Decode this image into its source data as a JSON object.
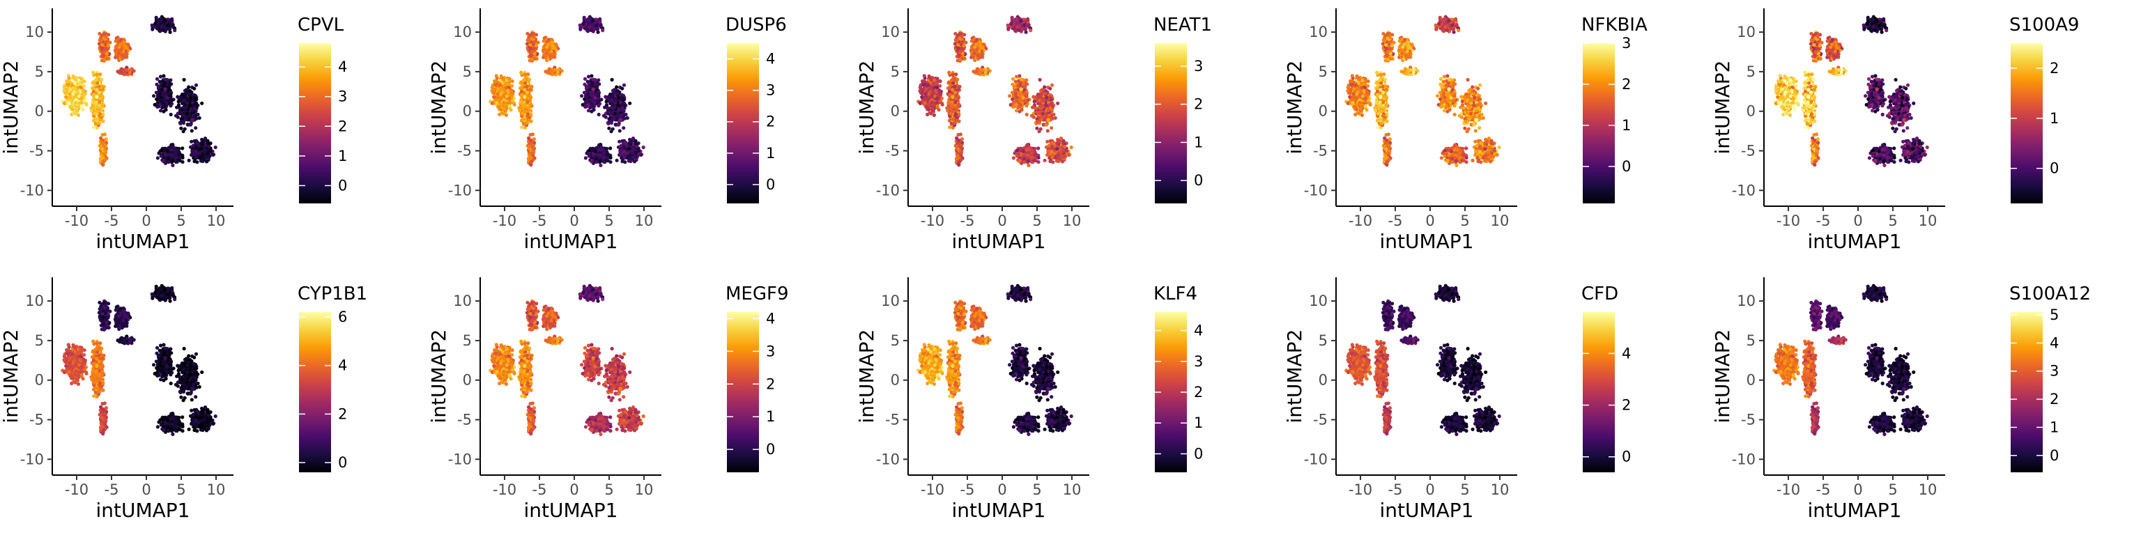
{
  "figure": {
    "colormap": "inferno",
    "colormap_stops": [
      "#000004",
      "#1b0c41",
      "#4a0c6b",
      "#781c6d",
      "#a52c60",
      "#cf4446",
      "#ed6925",
      "#fb9b06",
      "#f7d13d",
      "#fcffa4"
    ],
    "axis_color": "#000000",
    "background": "#ffffff"
  },
  "chart_data": [
    {
      "type": "scatter",
      "gene": "CPVL",
      "xlabel": "intUMAP1",
      "ylabel": "intUMAP2",
      "xlim": [
        -13.5,
        12.5
      ],
      "ylim": [
        -12,
        13
      ],
      "xticks": [
        -10,
        -5,
        0,
        5,
        10
      ],
      "yticks": [
        -10,
        -5,
        0,
        5,
        10
      ],
      "color_range": [
        -0.6,
        4.8
      ],
      "color_ticks": [
        0,
        1,
        2,
        3,
        4
      ],
      "profile": [
        4.2,
        3.9,
        3.4,
        3.0,
        3.0,
        2.5,
        0.0,
        0.0,
        0.0,
        0.0,
        0.0
      ]
    },
    {
      "type": "scatter",
      "gene": "DUSP6",
      "xlabel": "intUMAP1",
      "ylabel": "intUMAP2",
      "xlim": [
        -13.5,
        12.5
      ],
      "ylim": [
        -12,
        13
      ],
      "xticks": [
        -10,
        -5,
        0,
        5,
        10
      ],
      "yticks": [
        -10,
        -5,
        0,
        5,
        10
      ],
      "color_range": [
        -0.6,
        4.5
      ],
      "color_ticks": [
        0,
        1,
        2,
        3,
        4
      ],
      "profile": [
        3.3,
        3.3,
        2.8,
        2.8,
        3.0,
        3.0,
        0.5,
        0.4,
        0.3,
        0.4,
        0.2
      ]
    },
    {
      "type": "scatter",
      "gene": "NEAT1",
      "xlabel": "intUMAP1",
      "ylabel": "intUMAP2",
      "xlim": [
        -13.5,
        12.5
      ],
      "ylim": [
        -12,
        13
      ],
      "xticks": [
        -10,
        -5,
        0,
        5,
        10
      ],
      "yticks": [
        -10,
        -5,
        0,
        5,
        10
      ],
      "color_range": [
        -0.6,
        3.6
      ],
      "color_ticks": [
        0,
        1,
        2,
        3
      ],
      "profile": [
        1.6,
        2.0,
        1.9,
        2.0,
        2.2,
        2.3,
        1.2,
        2.2,
        1.9,
        1.9,
        1.6
      ]
    },
    {
      "type": "scatter",
      "gene": "NFKBIA",
      "xlabel": "intUMAP1",
      "ylabel": "intUMAP2",
      "xlim": [
        -13.5,
        12.5
      ],
      "ylim": [
        -12,
        13
      ],
      "xticks": [
        -10,
        -5,
        0,
        5,
        10
      ],
      "yticks": [
        -10,
        -5,
        0,
        5,
        10
      ],
      "color_range": [
        -0.9,
        3.0
      ],
      "color_ticks": [
        0,
        1,
        2,
        3
      ],
      "profile": [
        1.9,
        2.3,
        1.8,
        1.9,
        2.0,
        2.3,
        1.2,
        2.0,
        2.1,
        1.9,
        1.6
      ]
    },
    {
      "type": "scatter",
      "gene": "S100A9",
      "xlabel": "intUMAP1",
      "ylabel": "intUMAP2",
      "xlim": [
        -13.5,
        12.5
      ],
      "ylim": [
        -12,
        13
      ],
      "xticks": [
        -10,
        -5,
        0,
        5,
        10
      ],
      "yticks": [
        -10,
        -5,
        0,
        5,
        10
      ],
      "color_range": [
        -0.7,
        2.5
      ],
      "color_ticks": [
        0,
        1,
        2
      ],
      "profile": [
        2.2,
        2.1,
        1.6,
        1.4,
        1.2,
        2.0,
        -0.4,
        0.1,
        0.2,
        0.1,
        0.0
      ]
    },
    {
      "type": "scatter",
      "gene": "CYP1B1",
      "xlabel": "intUMAP1",
      "ylabel": "intUMAP2",
      "xlim": [
        -13.5,
        12.5
      ],
      "ylim": [
        -12,
        13
      ],
      "xticks": [
        -10,
        -5,
        0,
        5,
        10
      ],
      "yticks": [
        -10,
        -5,
        0,
        5,
        10
      ],
      "color_range": [
        -0.4,
        6.2
      ],
      "color_ticks": [
        0,
        2,
        4,
        6
      ],
      "profile": [
        3.5,
        4.2,
        3.3,
        0.6,
        0.5,
        0.3,
        0.0,
        0.0,
        0.0,
        0.0,
        0.0
      ]
    },
    {
      "type": "scatter",
      "gene": "MEGF9",
      "xlabel": "intUMAP1",
      "ylabel": "intUMAP2",
      "xlim": [
        -13.5,
        12.5
      ],
      "ylim": [
        -12,
        13
      ],
      "xticks": [
        -10,
        -5,
        0,
        5,
        10
      ],
      "yticks": [
        -10,
        -5,
        0,
        5,
        10
      ],
      "color_range": [
        -0.7,
        4.2
      ],
      "color_ticks": [
        0,
        1,
        2,
        3,
        4
      ],
      "profile": [
        2.9,
        2.9,
        2.4,
        2.3,
        2.3,
        2.7,
        0.6,
        2.0,
        2.0,
        2.0,
        1.6
      ]
    },
    {
      "type": "scatter",
      "gene": "KLF4",
      "xlabel": "intUMAP1",
      "ylabel": "intUMAP2",
      "xlim": [
        -13.5,
        12.5
      ],
      "ylim": [
        -12,
        13
      ],
      "xticks": [
        -10,
        -5,
        0,
        5,
        10
      ],
      "yticks": [
        -10,
        -5,
        0,
        5,
        10
      ],
      "color_range": [
        -0.6,
        4.6
      ],
      "color_ticks": [
        0,
        1,
        2,
        3,
        4
      ],
      "profile": [
        3.6,
        3.3,
        3.0,
        3.0,
        2.8,
        3.0,
        0.0,
        0.0,
        0.0,
        0.0,
        0.0
      ]
    },
    {
      "type": "scatter",
      "gene": "CFD",
      "xlabel": "intUMAP1",
      "ylabel": "intUMAP2",
      "xlim": [
        -13.5,
        12.5
      ],
      "ylim": [
        -12,
        13
      ],
      "xticks": [
        -10,
        -5,
        0,
        5,
        10
      ],
      "yticks": [
        -10,
        -5,
        0,
        5,
        10
      ],
      "color_range": [
        -0.6,
        5.6
      ],
      "color_ticks": [
        0,
        2,
        4
      ],
      "profile": [
        3.2,
        3.0,
        2.6,
        0.6,
        0.5,
        0.8,
        0.0,
        0.0,
        0.0,
        0.0,
        0.0
      ]
    },
    {
      "type": "scatter",
      "gene": "S100A12",
      "xlabel": "intUMAP1",
      "ylabel": "intUMAP2",
      "xlim": [
        -13.5,
        12.5
      ],
      "ylim": [
        -12,
        13
      ],
      "xticks": [
        -10,
        -5,
        0,
        5,
        10
      ],
      "yticks": [
        -10,
        -5,
        0,
        5,
        10
      ],
      "color_range": [
        -0.6,
        5.1
      ],
      "color_ticks": [
        0,
        1,
        2,
        3,
        4,
        5
      ],
      "profile": [
        3.4,
        3.0,
        2.1,
        1.0,
        0.6,
        2.0,
        0.0,
        0.0,
        0.0,
        0.0,
        0.0
      ]
    }
  ]
}
